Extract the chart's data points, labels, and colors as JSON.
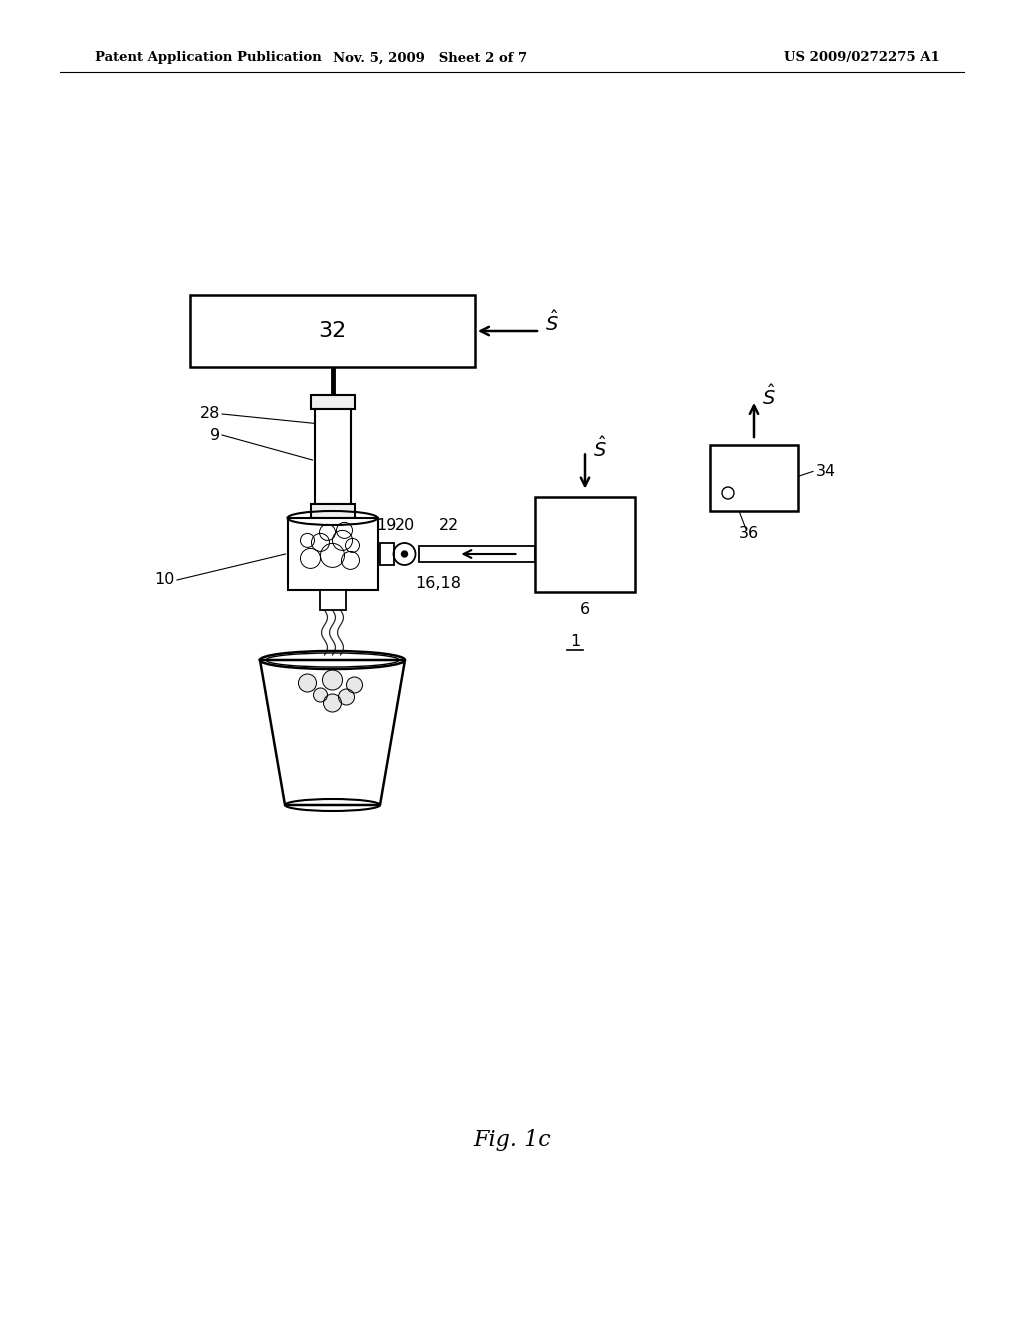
{
  "bg_color": "#ffffff",
  "header_left": "Patent Application Publication",
  "header_mid": "Nov. 5, 2009   Sheet 2 of 7",
  "header_right": "US 2009/0272275 A1",
  "fig_label": "Fig. 1c"
}
